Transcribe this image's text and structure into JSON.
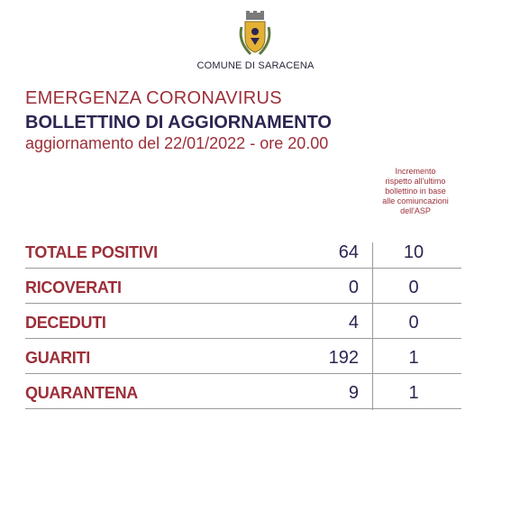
{
  "header": {
    "comune": "COMUNE DI SARACENA",
    "emergency": "EMERGENZA CORONAVIRUS",
    "bulletin": "BOLLETTINO DI AGGIORNAMENTO",
    "update": "aggiornamento del 22/01/2022 - ore 20.00"
  },
  "increment_note": [
    "Incremento",
    "rispetto all'ultimo",
    "bollettino in base",
    "alle comiuncazioni",
    "dell'ASP"
  ],
  "rows": [
    {
      "label": "TOTALE POSITIVI",
      "value": "64",
      "increment": "10"
    },
    {
      "label": "RICOVERATI",
      "value": "0",
      "increment": "0"
    },
    {
      "label": "DECEDUTI",
      "value": "4",
      "increment": "0"
    },
    {
      "label": "GUARITI",
      "value": "192",
      "increment": "1"
    },
    {
      "label": "QUARANTENA",
      "value": "9",
      "increment": "1"
    }
  ],
  "colors": {
    "accent": "#9c2f39",
    "text": "#2d2551",
    "crest_gold": "#e3b234"
  }
}
